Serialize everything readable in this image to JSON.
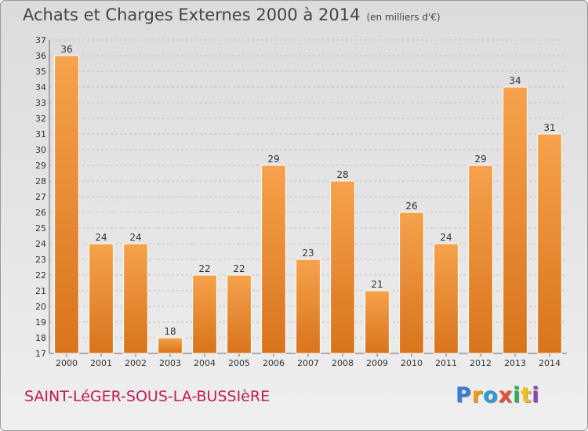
{
  "header": {
    "title": "Achats et Charges Externes 2000 à 2014",
    "subtitle": "(en milliers d'€)"
  },
  "footer": {
    "commune": "SAINT-LéGER-SOUS-LA-BUSSIèRE",
    "logo_letters": [
      {
        "char": "P",
        "color": "#3a7bd5"
      },
      {
        "char": "r",
        "color": "#f39c12"
      },
      {
        "char": "o",
        "color": "#2e9bd6"
      },
      {
        "char": "x",
        "color": "#e74c3c"
      },
      {
        "char": "i",
        "color": "#27ae60"
      },
      {
        "char": "t",
        "color": "#f1c40f"
      },
      {
        "char": "i",
        "color": "#8e44ad"
      }
    ]
  },
  "colors": {
    "bar_top": "#f6a24c",
    "bar_bottom": "#d8741c",
    "grid": "#bdbdbd",
    "commune": "#c2185b"
  },
  "chart_data": {
    "type": "bar",
    "categories": [
      "2000",
      "2001",
      "2002",
      "2003",
      "2004",
      "2005",
      "2006",
      "2007",
      "2008",
      "2009",
      "2010",
      "2011",
      "2012",
      "2013",
      "2014"
    ],
    "values": [
      36,
      24,
      24,
      18,
      22,
      22,
      29,
      23,
      28,
      21,
      26,
      24,
      29,
      34,
      31
    ],
    "ylim": [
      17,
      37
    ],
    "yticks": [
      17,
      18,
      19,
      20,
      21,
      22,
      23,
      24,
      25,
      26,
      27,
      28,
      29,
      30,
      31,
      32,
      33,
      34,
      35,
      36,
      37
    ],
    "grid": true,
    "xlabel": "",
    "ylabel": ""
  }
}
